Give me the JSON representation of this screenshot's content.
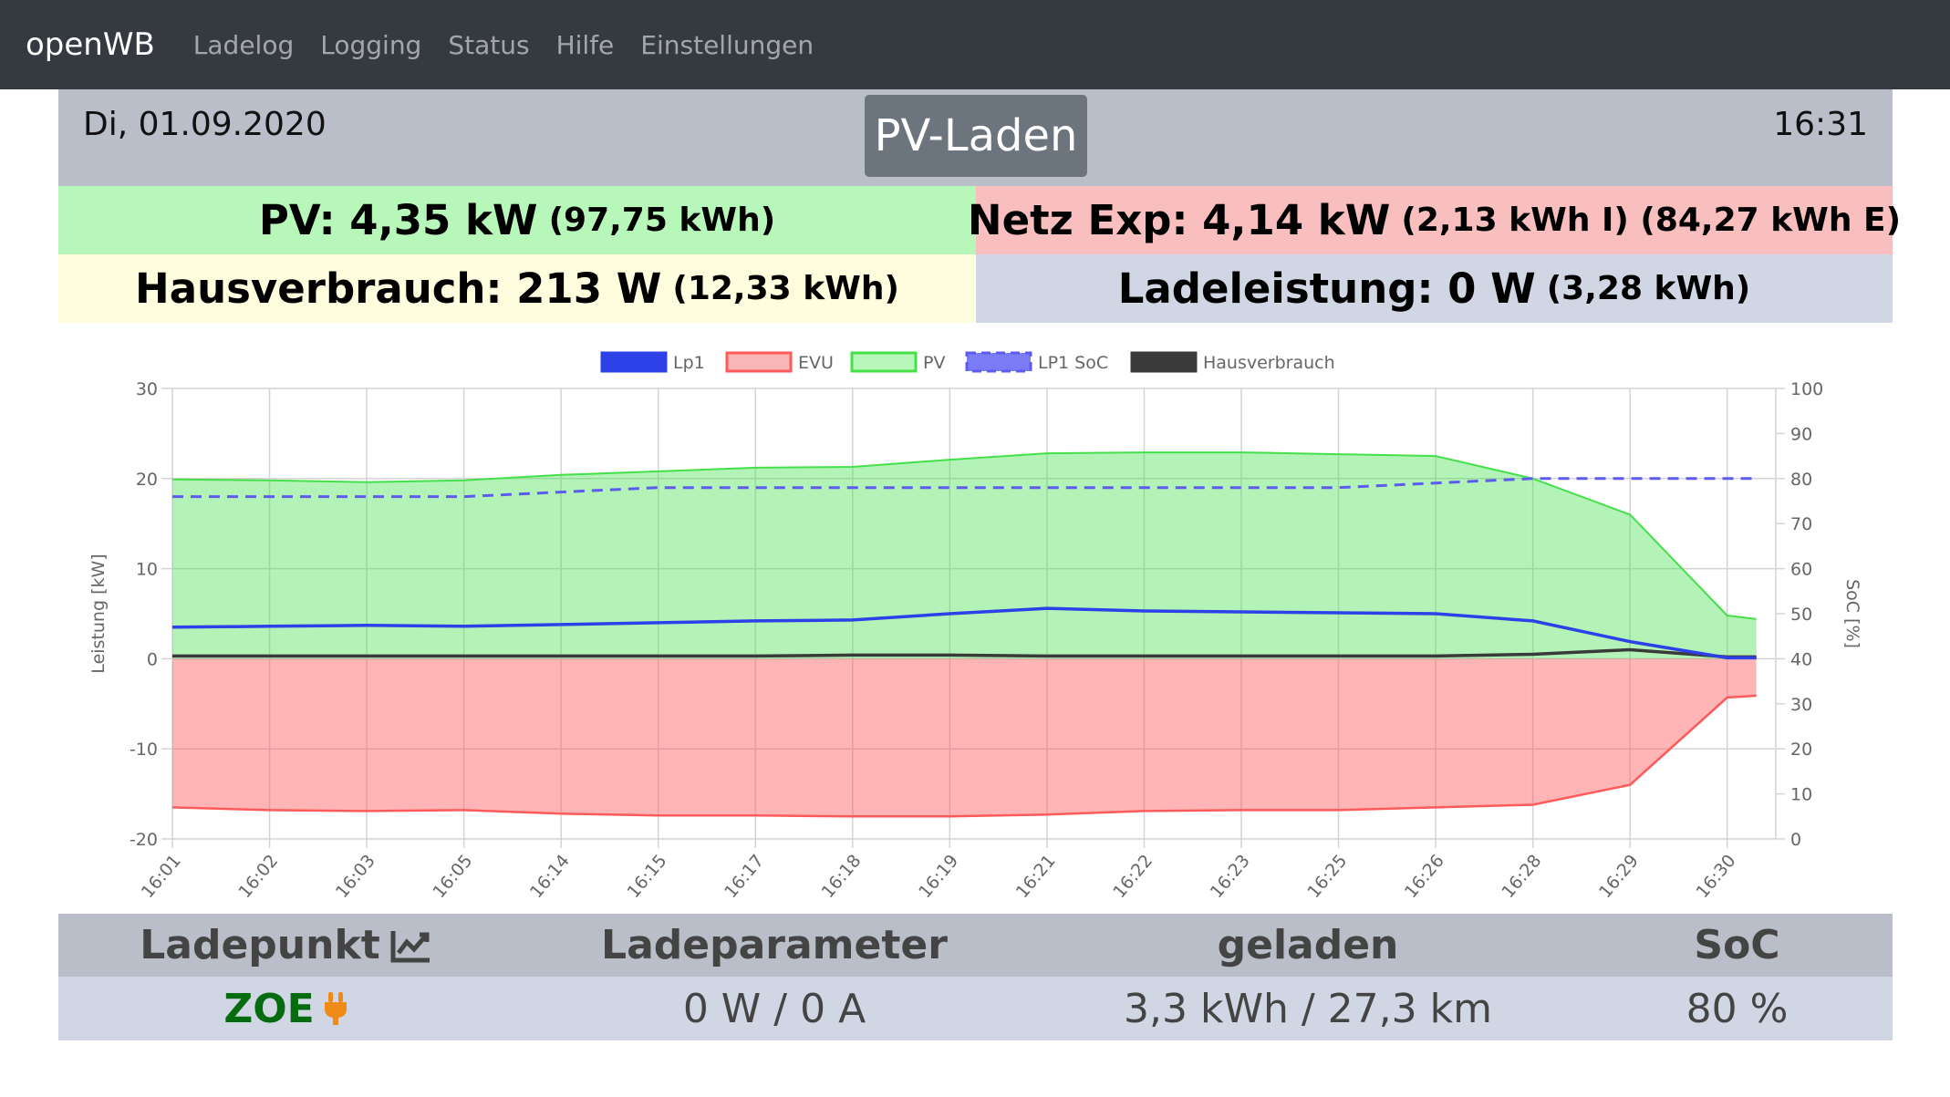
{
  "nav": {
    "brand": "openWB",
    "items": [
      "Ladelog",
      "Logging",
      "Status",
      "Hilfe",
      "Einstellungen"
    ]
  },
  "header": {
    "date": "Di, 01.09.2020",
    "mode": "PV-Laden",
    "time": "16:31"
  },
  "tiles": {
    "pv_main": "PV: 4,35 kW",
    "pv_sub": "(97,75 kWh)",
    "netz_main": "Netz Exp: 4,14 kW",
    "netz_sub": "(2,13 kWh I) (84,27 kWh E)",
    "haus_main": "Hausverbrauch: 213 W",
    "haus_sub": "(12,33 kWh)",
    "lade_main": "Ladeleistung: 0 W",
    "lade_sub": "(3,28 kWh)"
  },
  "colors": {
    "lp1": "#2c41e8",
    "evu": "#ff5a5a",
    "pv": "#44e04a",
    "soc": "#5b5bf0",
    "haus": "#3a3a3a"
  },
  "chart_data": {
    "type": "line",
    "legend": [
      "Lp1",
      "EVU",
      "PV",
      "LP1 SoC",
      "Hausverbrauch"
    ],
    "legend_position": "top",
    "grid": true,
    "ylabel": "Leistung [kW]",
    "ylabel_right": "SoC [%]",
    "ylim": [
      -20,
      30
    ],
    "ylim_right": [
      0,
      100
    ],
    "yticks": [
      -20,
      -10,
      0,
      10,
      20,
      30
    ],
    "yticks_right": [
      0,
      10,
      20,
      30,
      40,
      50,
      60,
      70,
      80,
      90,
      100
    ],
    "x_tick_labels": [
      "16:01",
      "16:02",
      "16:03",
      "16:05",
      "16:14",
      "16:15",
      "16:17",
      "16:18",
      "16:19",
      "16:21",
      "16:22",
      "16:23",
      "16:25",
      "16:26",
      "16:28",
      "16:29",
      "16:30"
    ],
    "x_index": [
      0,
      1,
      2,
      3,
      4,
      5,
      6,
      7,
      8,
      9,
      10,
      11,
      12,
      13,
      14,
      15,
      16,
      16.3
    ],
    "series": [
      {
        "name": "PV",
        "values": [
          19.9,
          19.8,
          19.6,
          19.8,
          20.4,
          20.8,
          21.2,
          21.3,
          22.1,
          22.8,
          22.9,
          22.9,
          22.7,
          22.5,
          20.0,
          16.0,
          4.8,
          4.4
        ]
      },
      {
        "name": "EVU",
        "values": [
          -16.5,
          -16.8,
          -16.9,
          -16.8,
          -17.2,
          -17.4,
          -17.4,
          -17.5,
          -17.5,
          -17.3,
          -16.9,
          -16.8,
          -16.8,
          -16.5,
          -16.2,
          -14.0,
          -4.3,
          -4.1
        ]
      },
      {
        "name": "Lp1",
        "values": [
          3.5,
          3.6,
          3.7,
          3.6,
          3.8,
          4.0,
          4.2,
          4.3,
          5.0,
          5.6,
          5.3,
          5.2,
          5.1,
          5.0,
          4.2,
          1.9,
          0.1,
          0.1
        ]
      },
      {
        "name": "Hausverbrauch",
        "values": [
          0.3,
          0.3,
          0.3,
          0.3,
          0.3,
          0.3,
          0.3,
          0.4,
          0.4,
          0.3,
          0.3,
          0.3,
          0.3,
          0.3,
          0.5,
          1.0,
          0.2,
          0.2
        ]
      },
      {
        "name": "LP1 SoC",
        "axis": "right",
        "values": [
          76,
          76,
          76,
          76,
          77,
          78,
          78,
          78,
          78,
          78,
          78,
          78,
          78,
          79,
          80,
          80,
          80,
          80
        ]
      }
    ]
  },
  "ladepunkt": {
    "headers": [
      "Ladepunkt",
      "Ladeparameter",
      "geladen",
      "SoC"
    ],
    "name": "ZOE",
    "params": "0 W / 0 A",
    "charged": "3,3 kWh / 27,3 km",
    "soc": "80 %"
  }
}
